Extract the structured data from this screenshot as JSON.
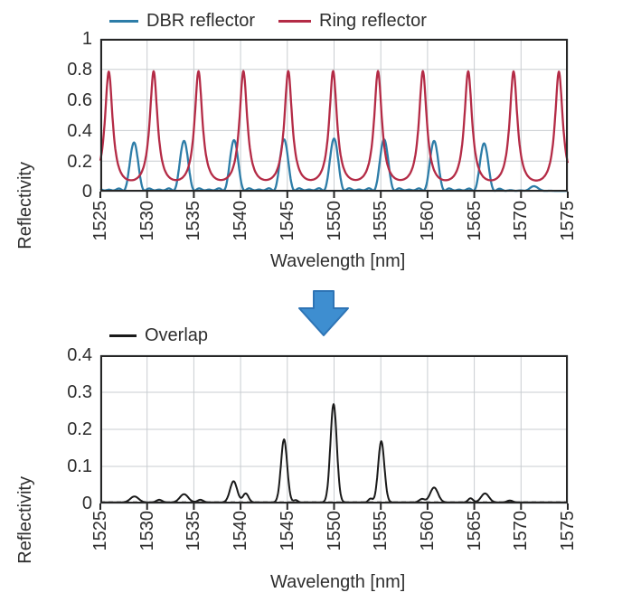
{
  "page": {
    "background": "#ffffff"
  },
  "arrow": {
    "fill": "#3e8ed0",
    "stroke": "#2e74b5"
  },
  "style": {
    "grid_color": "#c9cdd1",
    "axis_color": "#262626",
    "text_color": "#2e2e2e"
  },
  "chart_data": [
    {
      "id": "top",
      "type": "line",
      "title": "",
      "xlabel": "Wavelength [nm]",
      "ylabel": "Reflectivity",
      "xlim": [
        1525,
        1575
      ],
      "ylim": [
        0,
        1
      ],
      "grid": true,
      "legend_position": "top",
      "x_ticks": [
        1525,
        1530,
        1535,
        1540,
        1545,
        1550,
        1555,
        1560,
        1565,
        1570,
        1575
      ],
      "x_tick_labels": [
        "1525",
        "1530",
        "1535",
        "1540",
        "1545",
        "1550",
        "1555",
        "1560",
        "1565",
        "1570",
        "1575"
      ],
      "y_ticks": [
        0,
        0.2,
        0.4,
        0.6,
        0.8,
        1
      ],
      "y_tick_labels_display": [
        "1",
        "0.8",
        "0.6",
        "0.4",
        "0.2",
        "0"
      ],
      "zero_ref": {
        "y": 0.006,
        "dash": "6 4",
        "color": "#2d7da8"
      },
      "series": [
        {
          "name": "DBR reflector",
          "color": "#2d7da8",
          "shape": "sinc2",
          "width_nm": 1.15,
          "baseline": 0.004,
          "peaks": [
            {
              "x": 1523.25,
              "h": 0.3
            },
            {
              "x": 1528.6,
              "h": 0.315
            },
            {
              "x": 1533.95,
              "h": 0.325
            },
            {
              "x": 1539.3,
              "h": 0.33
            },
            {
              "x": 1544.65,
              "h": 0.335
            },
            {
              "x": 1550.0,
              "h": 0.34
            },
            {
              "x": 1555.35,
              "h": 0.335
            },
            {
              "x": 1560.7,
              "h": 0.325
            },
            {
              "x": 1566.05,
              "h": 0.31
            },
            {
              "x": 1571.4,
              "h": 0.03
            }
          ]
        },
        {
          "name": "Ring reflector",
          "color": "#b42b46",
          "shape": "lorentzian",
          "width_nm": 0.5,
          "baseline": 0.0,
          "peaks": [
            {
              "x": 1521.1,
              "h": 0.765
            },
            {
              "x": 1525.9,
              "h": 0.765
            },
            {
              "x": 1530.7,
              "h": 0.765
            },
            {
              "x": 1535.5,
              "h": 0.765
            },
            {
              "x": 1540.3,
              "h": 0.765
            },
            {
              "x": 1545.1,
              "h": 0.765
            },
            {
              "x": 1549.9,
              "h": 0.765
            },
            {
              "x": 1554.7,
              "h": 0.765
            },
            {
              "x": 1559.5,
              "h": 0.765
            },
            {
              "x": 1564.35,
              "h": 0.765
            },
            {
              "x": 1569.2,
              "h": 0.765
            },
            {
              "x": 1574.05,
              "h": 0.765
            },
            {
              "x": 1578.9,
              "h": 0.765
            }
          ]
        }
      ]
    },
    {
      "id": "bottom",
      "type": "line",
      "title": "",
      "xlabel": "Wavelength [nm]",
      "ylabel": "Reflectivity",
      "xlim": [
        1525,
        1575
      ],
      "ylim": [
        0,
        0.4
      ],
      "grid": true,
      "legend_position": "top",
      "x_ticks": [
        1525,
        1530,
        1535,
        1540,
        1545,
        1550,
        1555,
        1560,
        1565,
        1570,
        1575
      ],
      "x_tick_labels": [
        "1525",
        "1530",
        "1535",
        "1540",
        "1545",
        "1550",
        "1555",
        "1560",
        "1565",
        "1570",
        "1575"
      ],
      "y_ticks": [
        0,
        0.1,
        0.2,
        0.3,
        0.4
      ],
      "y_tick_labels_display": [
        "0.4",
        "0.3",
        "0.2",
        "0.1",
        "0"
      ],
      "zero_ref": {
        "y": 0.004,
        "dash": "5 4",
        "color": "#1a1a1a"
      },
      "series": [
        {
          "name": "Overlap",
          "color": "#1a1a1a",
          "shape": "gauss",
          "width_nm": 0.35,
          "baseline": 0.003,
          "peaks": [
            {
              "x": 1528.65,
              "h": 0.016,
              "w": 0.45
            },
            {
              "x": 1531.3,
              "h": 0.007,
              "w": 0.3
            },
            {
              "x": 1533.95,
              "h": 0.022,
              "w": 0.45
            },
            {
              "x": 1535.7,
              "h": 0.007,
              "w": 0.3
            },
            {
              "x": 1539.25,
              "h": 0.057,
              "w": 0.38
            },
            {
              "x": 1540.55,
              "h": 0.024,
              "w": 0.3
            },
            {
              "x": 1544.65,
              "h": 0.17,
              "w": 0.33
            },
            {
              "x": 1545.9,
              "h": 0.006,
              "w": 0.22
            },
            {
              "x": 1549.95,
              "h": 0.265,
              "w": 0.34
            },
            {
              "x": 1553.9,
              "h": 0.01,
              "w": 0.22
            },
            {
              "x": 1555.05,
              "h": 0.165,
              "w": 0.33
            },
            {
              "x": 1559.4,
              "h": 0.009,
              "w": 0.3
            },
            {
              "x": 1560.7,
              "h": 0.04,
              "w": 0.42
            },
            {
              "x": 1564.6,
              "h": 0.011,
              "w": 0.26
            },
            {
              "x": 1566.15,
              "h": 0.024,
              "w": 0.42
            },
            {
              "x": 1568.8,
              "h": 0.005,
              "w": 0.3
            }
          ]
        }
      ]
    }
  ]
}
